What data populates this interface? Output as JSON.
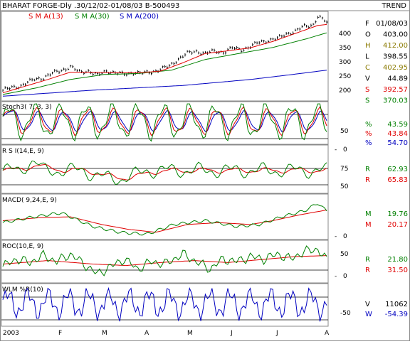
{
  "header": {
    "title": "BHARAT FORGE-Dly .30/12/02-01/08/03  B-500493",
    "trend": "TREND",
    "sma13_label": "S M A(13)",
    "sma30_label": "S M A(30)",
    "sma200_label": "S M A(200)"
  },
  "colors": {
    "price": "#000000",
    "red": "#e00000",
    "green": "#008000",
    "blue": "#0000c0",
    "olive": "#8a7a00",
    "frame": "#888888"
  },
  "readout": {
    "price": [
      {
        "key": "F",
        "value": "01/08/03"
      },
      {
        "key": "O",
        "value": "403.00"
      },
      {
        "key": "H",
        "value": "412.00"
      },
      {
        "key": "L",
        "value": "398.55"
      },
      {
        "key": "C",
        "value": "402.95"
      },
      {
        "key": "V",
        "value": "44.89"
      },
      {
        "key": "S",
        "value": "392.57"
      },
      {
        "key": "S",
        "value": "370.03"
      }
    ],
    "stoch": [
      {
        "key": "%",
        "value": "43.59"
      },
      {
        "key": "%",
        "value": "43.84"
      },
      {
        "key": "%",
        "value": "54.70"
      }
    ],
    "rsi": [
      {
        "key": "R",
        "value": "62.93"
      },
      {
        "key": "R",
        "value": "65.83"
      }
    ],
    "macd": [
      {
        "key": "M",
        "value": "19.76"
      },
      {
        "key": "M",
        "value": "20.17"
      }
    ],
    "roc": [
      {
        "key": "R",
        "value": "21.80"
      },
      {
        "key": "R",
        "value": "31.50"
      }
    ],
    "wlm": [
      {
        "key": "V",
        "value": "11062"
      },
      {
        "key": "W",
        "value": "-54.39"
      }
    ]
  },
  "chart_data": [
    {
      "type": "line",
      "name": "price-panel",
      "ylim": [
        180,
        440
      ],
      "yticks": [
        "400",
        "350",
        "300",
        "250",
        "200"
      ],
      "ytick_values": [
        400,
        350,
        300,
        250,
        200
      ],
      "x_labels": [
        "2003",
        "F",
        "M",
        "A",
        "M",
        "J",
        "J",
        "A"
      ],
      "x_label_positions": [
        0,
        20,
        40,
        61,
        80,
        101,
        122,
        142
      ],
      "n_points": 145,
      "price_anchors": [
        [
          0,
          208
        ],
        [
          8,
          222
        ],
        [
          14,
          240
        ],
        [
          18,
          246
        ],
        [
          22,
          258
        ],
        [
          26,
          268
        ],
        [
          30,
          278
        ],
        [
          34,
          262
        ],
        [
          38,
          266
        ],
        [
          42,
          252
        ],
        [
          46,
          266
        ],
        [
          50,
          260
        ],
        [
          54,
          255
        ],
        [
          58,
          262
        ],
        [
          62,
          258
        ],
        [
          66,
          263
        ],
        [
          70,
          270
        ],
        [
          74,
          280
        ],
        [
          78,
          302
        ],
        [
          82,
          318
        ],
        [
          86,
          325
        ],
        [
          90,
          318
        ],
        [
          94,
          325
        ],
        [
          98,
          322
        ],
        [
          102,
          334
        ],
        [
          106,
          330
        ],
        [
          110,
          338
        ],
        [
          114,
          352
        ],
        [
          118,
          358
        ],
        [
          122,
          362
        ],
        [
          126,
          378
        ],
        [
          130,
          384
        ],
        [
          134,
          400
        ],
        [
          138,
          405
        ],
        [
          140,
          428
        ],
        [
          142,
          420
        ],
        [
          144,
          412
        ]
      ],
      "sma13_anchors": [
        [
          0,
          200
        ],
        [
          20,
          240
        ],
        [
          30,
          262
        ],
        [
          40,
          262
        ],
        [
          50,
          260
        ],
        [
          60,
          260
        ],
        [
          70,
          265
        ],
        [
          80,
          290
        ],
        [
          90,
          318
        ],
        [
          100,
          326
        ],
        [
          110,
          335
        ],
        [
          120,
          354
        ],
        [
          130,
          378
        ],
        [
          140,
          402
        ],
        [
          144,
          405
        ]
      ],
      "sma30_anchors": [
        [
          0,
          195
        ],
        [
          15,
          215
        ],
        [
          30,
          240
        ],
        [
          45,
          255
        ],
        [
          60,
          258
        ],
        [
          75,
          268
        ],
        [
          90,
          300
        ],
        [
          105,
          318
        ],
        [
          120,
          336
        ],
        [
          135,
          362
        ],
        [
          144,
          380
        ]
      ],
      "sma200_anchors": [
        [
          0,
          190
        ],
        [
          40,
          208
        ],
        [
          80,
          222
        ],
        [
          110,
          240
        ],
        [
          130,
          256
        ],
        [
          144,
          268
        ]
      ]
    },
    {
      "type": "line",
      "name": "stochastic",
      "ylim": [
        0,
        100
      ],
      "yticks": [
        "50",
        "0"
      ],
      "ytick_values": [
        50,
        0
      ],
      "guides": [
        85,
        20
      ]
    },
    {
      "type": "line",
      "name": "rsi",
      "ylim": [
        40,
        95
      ],
      "yticks": [
        "75",
        "50"
      ],
      "ytick_values": [
        75,
        50
      ],
      "guides": [
        70,
        50
      ]
    },
    {
      "type": "line",
      "name": "macd",
      "ylim": [
        -8,
        36
      ],
      "yticks": [
        "0"
      ],
      "ytick_values": [
        0
      ],
      "macd_anchors": [
        [
          0,
          8
        ],
        [
          14,
          14
        ],
        [
          26,
          18
        ],
        [
          40,
          4
        ],
        [
          52,
          -2
        ],
        [
          64,
          -4
        ],
        [
          76,
          6
        ],
        [
          90,
          10
        ],
        [
          104,
          4
        ],
        [
          114,
          6
        ],
        [
          124,
          14
        ],
        [
          134,
          20
        ],
        [
          140,
          28
        ],
        [
          144,
          20
        ]
      ],
      "signal_anchors": [
        [
          0,
          10
        ],
        [
          16,
          13
        ],
        [
          30,
          14
        ],
        [
          44,
          6
        ],
        [
          56,
          1
        ],
        [
          68,
          -2
        ],
        [
          82,
          6
        ],
        [
          96,
          8
        ],
        [
          110,
          6
        ],
        [
          120,
          10
        ],
        [
          132,
          16
        ],
        [
          144,
          21
        ]
      ]
    },
    {
      "type": "line",
      "name": "roc",
      "ylim": [
        -20,
        60
      ],
      "yticks": [
        "50",
        "0"
      ],
      "ytick_values": [
        50,
        0
      ],
      "guides": [
        0
      ],
      "roc_anchors": [
        [
          0,
          10
        ],
        [
          6,
          25
        ],
        [
          12,
          18
        ],
        [
          18,
          32
        ],
        [
          24,
          20
        ],
        [
          30,
          35
        ],
        [
          36,
          15
        ],
        [
          42,
          -5
        ],
        [
          48,
          10
        ],
        [
          54,
          25
        ],
        [
          60,
          5
        ],
        [
          66,
          20
        ],
        [
          72,
          15
        ],
        [
          80,
          35
        ],
        [
          86,
          20
        ],
        [
          92,
          5
        ],
        [
          98,
          25
        ],
        [
          104,
          20
        ],
        [
          110,
          30
        ],
        [
          116,
          25
        ],
        [
          122,
          35
        ],
        [
          128,
          25
        ],
        [
          134,
          40
        ],
        [
          140,
          45
        ],
        [
          144,
          22
        ]
      ],
      "signal_anchors": [
        [
          0,
          15
        ],
        [
          20,
          22
        ],
        [
          40,
          15
        ],
        [
          55,
          12
        ],
        [
          70,
          18
        ],
        [
          85,
          22
        ],
        [
          100,
          18
        ],
        [
          115,
          24
        ],
        [
          130,
          30
        ],
        [
          144,
          32
        ]
      ]
    },
    {
      "type": "line",
      "name": "wlm-percent-r",
      "ylim": [
        -110,
        10
      ],
      "yticks": [
        "-50"
      ],
      "ytick_values": [
        -50
      ],
      "guides": [
        -20,
        -80
      ]
    }
  ]
}
